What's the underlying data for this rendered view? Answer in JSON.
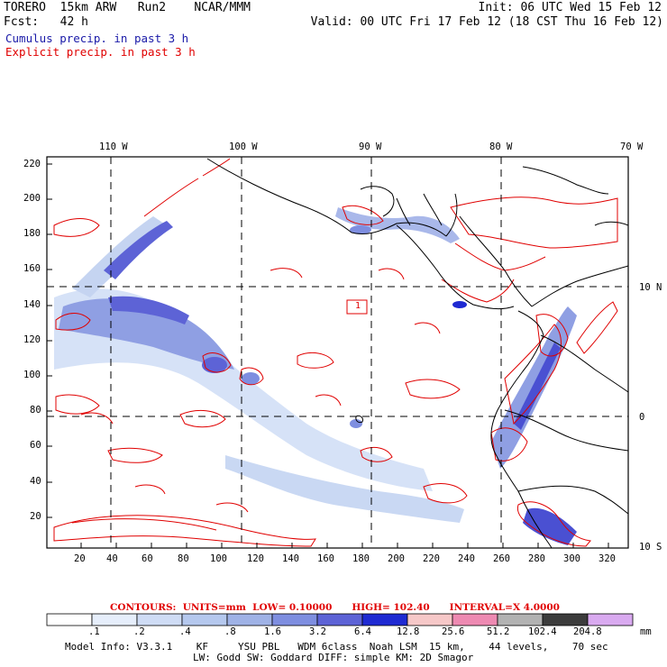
{
  "header": {
    "model": "TORERO",
    "resolution": "15km ARW",
    "run": "Run2",
    "org": "NCAR/MMM",
    "init": "Init: 06 UTC Wed 15 Feb 12",
    "fcst_label": "Fcst:",
    "fcst_value": "42 h",
    "valid": "Valid: 00 UTC Fri 17 Feb 12 (18 CST Thu 16 Feb 12)"
  },
  "legend": {
    "cumulus": "Cumulus precip. in past 3 h",
    "explicit": "Explicit precip. in past 3 h"
  },
  "map": {
    "top_lon_labels": [
      "110 W",
      "100 W",
      "90 W",
      "80 W",
      "70 W"
    ],
    "right_lat_labels": [
      "10 N",
      "0",
      "10 S"
    ],
    "left_y_ticks": [
      "220",
      "200",
      "180",
      "160",
      "140",
      "120",
      "100",
      "80",
      "60",
      "40",
      "20"
    ],
    "bottom_x_ticks": [
      "20",
      "40",
      "60",
      "80",
      "100",
      "120",
      "140",
      "160",
      "180",
      "200",
      "220",
      "240",
      "260",
      "280",
      "300",
      "320"
    ],
    "box_label": "1"
  },
  "contour_info": {
    "contours": "CONTOURS:",
    "units": "UNITS=mm",
    "low": "LOW= 0.10000",
    "high": "HIGH= 102.40",
    "interval": "INTERVAL=X 4.0000"
  },
  "colorbar": {
    "unit": "mm",
    "labels": [
      ".1",
      ".2",
      ".4",
      ".8",
      "1.6",
      "3.2",
      "6.4",
      "12.8",
      "25.6",
      "51.2",
      "102.4",
      "204.8"
    ],
    "colors": [
      "#ffffff",
      "#e6eefb",
      "#cfdcf5",
      "#b5c8ee",
      "#9fb2e6",
      "#7e8ee0",
      "#5d63d6",
      "#1f2ad2",
      "#f6c8c8",
      "#ee8ab2",
      "#b2b2b2",
      "#3c3c3c",
      "#d9aaf0"
    ]
  },
  "model_info": {
    "line1": "Model Info: V3.3.1    KF     YSU PBL   WDM 6class  Noah LSM  15 km,    44 levels,    70 sec",
    "line2": "LW: Godd SW: Goddard DIFF: simple KM: 2D Smagor"
  }
}
